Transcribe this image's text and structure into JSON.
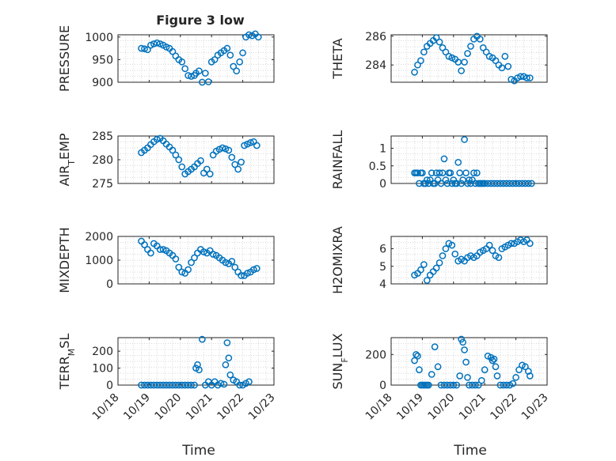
{
  "figure": {
    "title": "Figure 3 low",
    "marker_color": "#0072BD",
    "xlabel": "Time",
    "xticks": [
      "10/18",
      "10/19",
      "10/20",
      "10/21",
      "10/22",
      "10/23"
    ],
    "xlim": [
      0,
      5
    ]
  },
  "chart_data": [
    {
      "type": "scatter",
      "ylabel": "PRESSURE",
      "ylim": [
        900,
        1005
      ],
      "yticks": [
        "900",
        "950",
        "1000"
      ],
      "grid": true,
      "x": [
        0.75,
        0.85,
        0.95,
        1.05,
        1.15,
        1.25,
        1.35,
        1.45,
        1.55,
        1.65,
        1.75,
        1.85,
        1.95,
        2.05,
        2.15,
        2.25,
        2.35,
        2.45,
        2.5,
        2.6,
        2.7,
        2.8,
        2.9,
        3.0,
        3.1,
        3.2,
        3.3,
        3.4,
        3.5,
        3.6,
        3.7,
        3.8,
        3.9,
        4.0,
        4.1,
        4.2,
        4.3,
        4.4,
        4.5
      ],
      "y": [
        975,
        974,
        972,
        982,
        985,
        987,
        985,
        982,
        978,
        975,
        968,
        958,
        950,
        945,
        930,
        915,
        913,
        915,
        920,
        925,
        900,
        920,
        901,
        945,
        950,
        960,
        965,
        970,
        975,
        960,
        935,
        925,
        945,
        965,
        1000,
        1005,
        1003,
        1007,
        1000
      ]
    },
    {
      "type": "scatter",
      "ylabel": "THETA",
      "ylim": [
        282.8,
        286.1
      ],
      "yticks": [
        "284",
        "286"
      ],
      "grid": true,
      "x": [
        0.75,
        0.85,
        0.95,
        1.05,
        1.15,
        1.25,
        1.35,
        1.45,
        1.55,
        1.65,
        1.75,
        1.85,
        1.95,
        2.05,
        2.15,
        2.25,
        2.35,
        2.45,
        2.55,
        2.65,
        2.75,
        2.85,
        2.95,
        3.05,
        3.15,
        3.25,
        3.35,
        3.45,
        3.55,
        3.65,
        3.75,
        3.85,
        3.95,
        4.05,
        4.15,
        4.25,
        4.35,
        4.45
      ],
      "y": [
        283.5,
        284.0,
        284.3,
        284.9,
        285.3,
        285.5,
        285.7,
        285.9,
        285.6,
        285.2,
        284.9,
        284.6,
        284.5,
        284.4,
        284.2,
        283.6,
        284.2,
        284.8,
        285.3,
        285.8,
        286.0,
        285.8,
        285.2,
        284.9,
        284.6,
        284.5,
        284.3,
        284.0,
        283.8,
        284.6,
        283.9,
        283.0,
        282.9,
        283.1,
        283.2,
        283.2,
        283.1,
        283.1
      ]
    },
    {
      "type": "scatter",
      "ylabel": "AIR_TEMP",
      "ylim": [
        275,
        285
      ],
      "yticks": [
        "275",
        "280",
        "285"
      ],
      "grid": true,
      "x": [
        0.75,
        0.85,
        0.95,
        1.05,
        1.15,
        1.25,
        1.35,
        1.45,
        1.55,
        1.65,
        1.75,
        1.85,
        1.95,
        2.05,
        2.15,
        2.25,
        2.35,
        2.45,
        2.55,
        2.65,
        2.75,
        2.85,
        2.95,
        3.05,
        3.15,
        3.25,
        3.35,
        3.45,
        3.55,
        3.65,
        3.75,
        3.85,
        3.95,
        4.05,
        4.15,
        4.25,
        4.35,
        4.45
      ],
      "y": [
        281.5,
        282.0,
        282.5,
        283.2,
        283.8,
        284.3,
        284.5,
        284.0,
        283.3,
        282.7,
        282.0,
        281.0,
        280.0,
        278.5,
        277.0,
        277.5,
        278.0,
        278.5,
        279.2,
        279.8,
        277.2,
        278.0,
        277.0,
        281.0,
        281.8,
        282.2,
        282.5,
        282.3,
        282.0,
        280.5,
        279.0,
        278.0,
        279.5,
        283.0,
        283.3,
        283.6,
        283.8,
        283.0
      ]
    },
    {
      "type": "scatter",
      "ylabel": "RAINFALL",
      "ylim": [
        0,
        1.35
      ],
      "yticks": [
        "0",
        "0.5",
        "1"
      ],
      "grid": true,
      "x": [
        0.75,
        0.8,
        0.85,
        0.9,
        0.95,
        1.0,
        1.05,
        1.1,
        1.15,
        1.2,
        1.25,
        1.3,
        1.35,
        1.4,
        1.45,
        1.5,
        1.55,
        1.6,
        1.65,
        1.7,
        1.75,
        1.8,
        1.85,
        1.9,
        1.95,
        2.0,
        2.05,
        2.1,
        2.15,
        2.2,
        2.25,
        2.3,
        2.35,
        2.4,
        2.45,
        2.5,
        2.55,
        2.6,
        2.65,
        2.7,
        2.75,
        2.8,
        2.85,
        2.9,
        2.95,
        3.0,
        3.1,
        3.2,
        3.3,
        3.4,
        3.5,
        3.6,
        3.7,
        3.8,
        3.9,
        4.0,
        4.1,
        4.2,
        4.3,
        4.4,
        4.5
      ],
      "y": [
        0.3,
        0.3,
        0.3,
        0.0,
        0.3,
        0.3,
        0.0,
        0.0,
        0.1,
        0.0,
        0.1,
        0.3,
        0.0,
        0.0,
        0.3,
        0.1,
        0.3,
        0.0,
        0.3,
        0.7,
        0.1,
        0.0,
        0.3,
        0.3,
        0.0,
        0.1,
        0.0,
        0.0,
        0.6,
        0.3,
        0.0,
        0.1,
        1.25,
        0.3,
        0.0,
        0.1,
        0.0,
        0.1,
        0.3,
        0.0,
        0.3,
        0.0,
        0.0,
        0.0,
        0.0,
        0.0,
        0.0,
        0.0,
        0.0,
        0.0,
        0.0,
        0.0,
        0.0,
        0.0,
        0.0,
        0.0,
        0.0,
        0.0,
        0.0,
        0.0,
        0.0
      ]
    },
    {
      "type": "scatter",
      "ylabel": "MIXDEPTH",
      "ylim": [
        0,
        2000
      ],
      "yticks": [
        "0",
        "1000",
        "2000"
      ],
      "grid": true,
      "x": [
        0.75,
        0.85,
        0.95,
        1.05,
        1.15,
        1.25,
        1.35,
        1.45,
        1.55,
        1.65,
        1.75,
        1.85,
        1.95,
        2.05,
        2.15,
        2.25,
        2.35,
        2.45,
        2.55,
        2.65,
        2.75,
        2.85,
        2.95,
        3.05,
        3.15,
        3.25,
        3.35,
        3.45,
        3.55,
        3.65,
        3.75,
        3.85,
        3.95,
        4.05,
        4.15,
        4.25,
        4.35,
        4.45
      ],
      "y": [
        1800,
        1650,
        1450,
        1300,
        1700,
        1600,
        1450,
        1450,
        1400,
        1300,
        1200,
        1050,
        700,
        500,
        450,
        600,
        900,
        1100,
        1300,
        1450,
        1350,
        1300,
        1400,
        1250,
        1200,
        1100,
        1000,
        900,
        850,
        950,
        700,
        500,
        350,
        350,
        450,
        500,
        600,
        650
      ]
    },
    {
      "type": "scatter",
      "ylabel": "H2OMIXRA",
      "ylim": [
        4,
        6.7
      ],
      "yticks": [
        "4",
        "5",
        "6"
      ],
      "grid": true,
      "x": [
        0.75,
        0.85,
        0.95,
        1.05,
        1.15,
        1.25,
        1.35,
        1.45,
        1.55,
        1.65,
        1.75,
        1.85,
        1.95,
        2.05,
        2.15,
        2.25,
        2.35,
        2.45,
        2.55,
        2.65,
        2.75,
        2.85,
        2.95,
        3.05,
        3.15,
        3.25,
        3.35,
        3.45,
        3.55,
        3.65,
        3.75,
        3.85,
        3.95,
        4.05,
        4.15,
        4.25,
        4.35,
        4.45
      ],
      "y": [
        4.5,
        4.6,
        4.8,
        5.1,
        4.2,
        4.5,
        4.7,
        4.9,
        5.2,
        5.6,
        6.0,
        6.3,
        6.2,
        5.7,
        5.3,
        5.4,
        5.3,
        5.5,
        5.6,
        5.5,
        5.6,
        5.8,
        5.9,
        6.0,
        6.2,
        5.9,
        5.6,
        5.5,
        6.0,
        6.1,
        6.2,
        6.3,
        6.3,
        6.4,
        6.5,
        6.4,
        6.5,
        6.3
      ]
    },
    {
      "type": "scatter",
      "ylabel": "TERR_MSL",
      "ylim": [
        0,
        280
      ],
      "yticks": [
        "0",
        "100",
        "200"
      ],
      "grid": true,
      "x": [
        0.75,
        0.85,
        0.95,
        1.05,
        1.15,
        1.25,
        1.35,
        1.45,
        1.55,
        1.65,
        1.75,
        1.85,
        1.95,
        2.05,
        2.15,
        2.25,
        2.35,
        2.45,
        2.5,
        2.55,
        2.6,
        2.7,
        2.8,
        2.9,
        3.0,
        3.1,
        3.2,
        3.3,
        3.4,
        3.45,
        3.5,
        3.55,
        3.6,
        3.7,
        3.8,
        3.9,
        4.0,
        4.1,
        4.2
      ],
      "y": [
        0,
        0,
        0,
        0,
        0,
        0,
        0,
        0,
        0,
        0,
        0,
        0,
        0,
        0,
        0,
        0,
        0,
        0,
        100,
        120,
        90,
        270,
        0,
        20,
        0,
        20,
        0,
        10,
        5,
        120,
        250,
        160,
        60,
        30,
        20,
        0,
        0,
        10,
        20
      ]
    },
    {
      "type": "scatter",
      "ylabel": "SUN_FLUX",
      "ylim": [
        0,
        310
      ],
      "yticks": [
        "0",
        "200"
      ],
      "grid": true,
      "x": [
        0.75,
        0.8,
        0.85,
        0.9,
        0.95,
        1.0,
        1.05,
        1.1,
        1.15,
        1.2,
        1.3,
        1.4,
        1.5,
        1.6,
        1.7,
        1.8,
        1.9,
        2.0,
        2.1,
        2.2,
        2.25,
        2.3,
        2.35,
        2.4,
        2.45,
        2.5,
        2.6,
        2.7,
        2.8,
        2.9,
        3.0,
        3.1,
        3.2,
        3.25,
        3.3,
        3.35,
        3.4,
        3.5,
        3.6,
        3.7,
        3.8,
        3.9,
        4.0,
        4.1,
        4.2,
        4.3,
        4.4,
        4.45
      ],
      "y": [
        160,
        200,
        190,
        100,
        0,
        0,
        0,
        0,
        0,
        0,
        70,
        250,
        120,
        0,
        0,
        0,
        0,
        0,
        0,
        60,
        300,
        280,
        230,
        150,
        50,
        0,
        0,
        0,
        0,
        30,
        100,
        190,
        180,
        160,
        170,
        120,
        60,
        0,
        0,
        0,
        0,
        10,
        50,
        100,
        130,
        120,
        90,
        60
      ]
    }
  ]
}
